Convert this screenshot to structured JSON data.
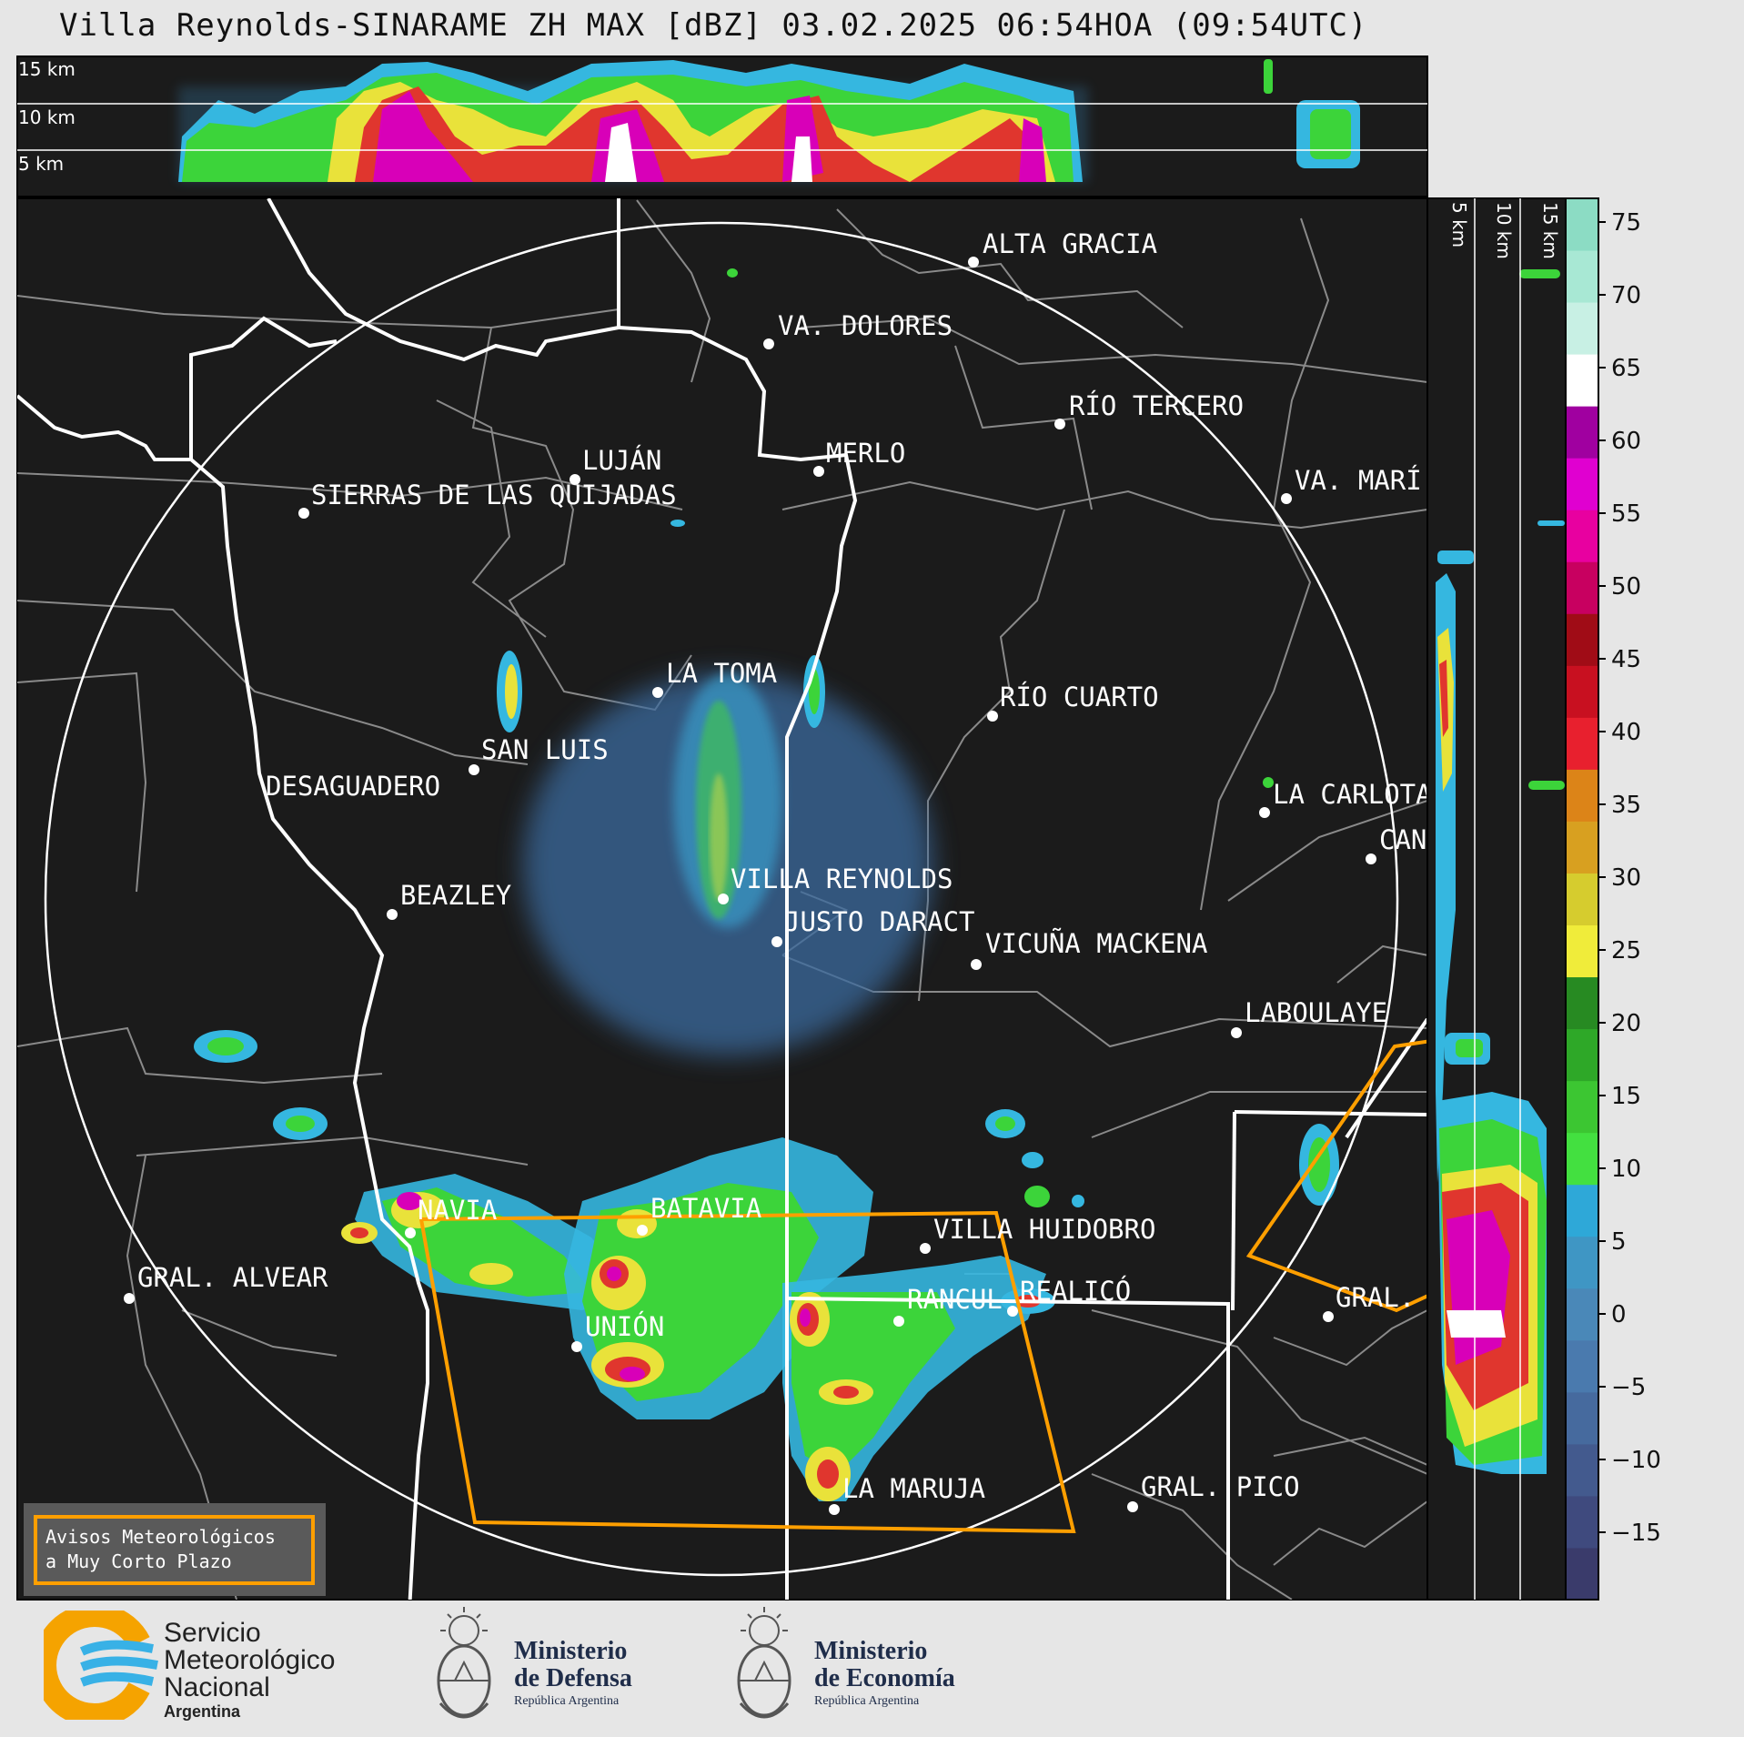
{
  "title": "Villa Reynolds-SINARAME ZH MAX [dBZ] 03.02.2025 06:54HOA (09:54UTC)",
  "top_panel": {
    "labels": [
      "15 km",
      "10 km",
      "5 km"
    ]
  },
  "side_panel": {
    "labels": [
      "5 km",
      "10 km",
      "15 km"
    ]
  },
  "colorbar": {
    "ticks": [
      "75",
      "70",
      "65",
      "60",
      "55",
      "50",
      "45",
      "40",
      "35",
      "30",
      "25",
      "20",
      "15",
      "10",
      "5",
      "0",
      "−5",
      "−10",
      "−15"
    ],
    "colors": [
      "#3a3b6b",
      "#3f4a7e",
      "#435a8e",
      "#466a9e",
      "#4a7aae",
      "#4a88b8",
      "#3f96c4",
      "#2ea8d8",
      "#43e040",
      "#3cc632",
      "#2ea828",
      "#278a22",
      "#f0ec3a",
      "#d6cc2e",
      "#d8a020",
      "#dc8418",
      "#e8202e",
      "#c81020",
      "#a00c16",
      "#c80060",
      "#e800a0",
      "#e000d0",
      "#a000a0",
      "#ffffff",
      "#c8f0e4",
      "#a8e8d4",
      "#8cdcc4"
    ]
  },
  "cities": [
    {
      "name": "ALTA GRACIA"
    },
    {
      "name": "VA. DOLORES"
    },
    {
      "name": "RÍO TERCERO"
    },
    {
      "name": "LUJÁN"
    },
    {
      "name": "MERLO"
    },
    {
      "name": "SIERRAS DE LAS QUIJADAS"
    },
    {
      "name": "VA. MARÍ"
    },
    {
      "name": "LA TOMA"
    },
    {
      "name": "RÍO CUARTO"
    },
    {
      "name": "SAN LUIS"
    },
    {
      "name": "DESAGUADERO"
    },
    {
      "name": "LA CARLOTA"
    },
    {
      "name": "CAN"
    },
    {
      "name": "VILLA REYNOLDS"
    },
    {
      "name": "BEAZLEY"
    },
    {
      "name": "JUSTO DARACT"
    },
    {
      "name": "VICUÑA MACKENA"
    },
    {
      "name": "LABOULAYE"
    },
    {
      "name": "NAVIA"
    },
    {
      "name": "BATAVIA"
    },
    {
      "name": "VILLA HUIDOBRO"
    },
    {
      "name": "GRAL. ALVEAR"
    },
    {
      "name": "RANCUL"
    },
    {
      "name": "REALICÓ"
    },
    {
      "name": "GRAL."
    },
    {
      "name": "UNIÓN"
    },
    {
      "name": "LA MARUJA"
    },
    {
      "name": "GRAL. PICO"
    }
  ],
  "warning_box": {
    "line1": "Avisos Meteorológicos",
    "line2": "a Muy Corto Plazo",
    "accent": "#ff9f00"
  },
  "footer": {
    "smn": {
      "line1": "Servicio",
      "line2": "Meteorológico",
      "line3": "Nacional",
      "line4": "Argentina"
    },
    "defensa": {
      "line1": "Ministerio",
      "line2": "de Defensa",
      "line3": "República Argentina"
    },
    "economia": {
      "line1": "Ministerio",
      "line2": "de Economía",
      "line3": "República Argentina"
    }
  }
}
